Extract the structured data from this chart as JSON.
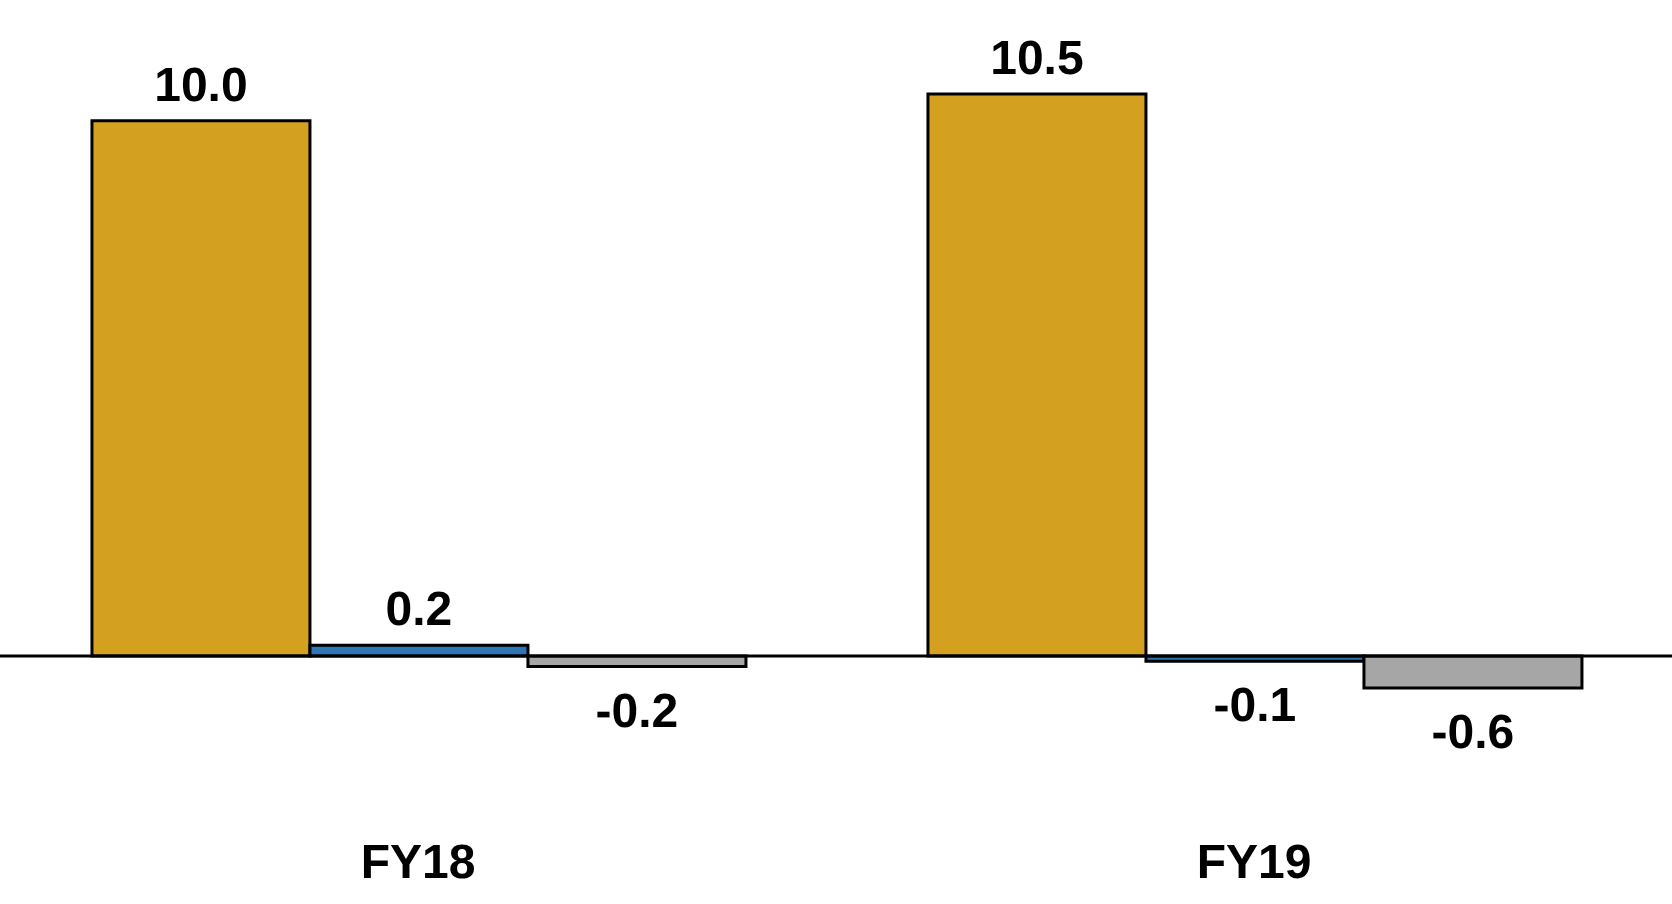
{
  "chart_data": {
    "type": "bar",
    "categories": [
      "FY18",
      "FY19"
    ],
    "series": [
      {
        "color": "#d4a020",
        "values": [
          10.0,
          10.5
        ],
        "value_labels": [
          "10.0",
          "10.5"
        ]
      },
      {
        "color": "#2e75b6",
        "values": [
          0.2,
          -0.1
        ],
        "value_labels": [
          "0.2",
          "-0.1"
        ]
      },
      {
        "color": "#a6a6a6",
        "values": [
          -0.2,
          -0.6
        ],
        "value_labels": [
          "-0.2",
          "-0.6"
        ]
      }
    ],
    "grid": false,
    "legend": false
  }
}
